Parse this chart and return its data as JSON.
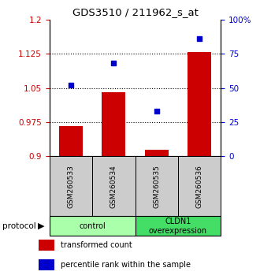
{
  "title": "GDS3510 / 211962_s_at",
  "categories": [
    "GSM260533",
    "GSM260534",
    "GSM260535",
    "GSM260536"
  ],
  "bar_values": [
    0.967,
    1.04,
    0.915,
    1.128
  ],
  "point_values": [
    52,
    68,
    33,
    86
  ],
  "ylim_left": [
    0.9,
    1.2
  ],
  "ylim_right": [
    0,
    100
  ],
  "yticks_left": [
    0.9,
    0.975,
    1.05,
    1.125,
    1.2
  ],
  "ytick_labels_left": [
    "0.9",
    "0.975",
    "1.05",
    "1.125",
    "1.2"
  ],
  "yticks_right": [
    0,
    25,
    50,
    75,
    100
  ],
  "ytick_labels_right": [
    "0",
    "25",
    "50",
    "75",
    "100%"
  ],
  "bar_color": "#cc0000",
  "point_color": "#0000cc",
  "grid_lines": [
    0.975,
    1.05,
    1.125
  ],
  "groups": [
    {
      "label": "control",
      "start": 0,
      "end": 2,
      "color": "#aaffaa"
    },
    {
      "label": "CLDN1\noverexpression",
      "start": 2,
      "end": 4,
      "color": "#44dd66"
    }
  ],
  "protocol_label": "protocol",
  "legend_items": [
    {
      "color": "#cc0000",
      "label": "transformed count"
    },
    {
      "color": "#0000cc",
      "label": "percentile rank within the sample"
    }
  ],
  "left_axis_color": "#cc0000",
  "right_axis_color": "#0000cc",
  "tick_label_gray_bg": "#cccccc",
  "bar_bottom": 0.9,
  "bar_width": 0.55
}
